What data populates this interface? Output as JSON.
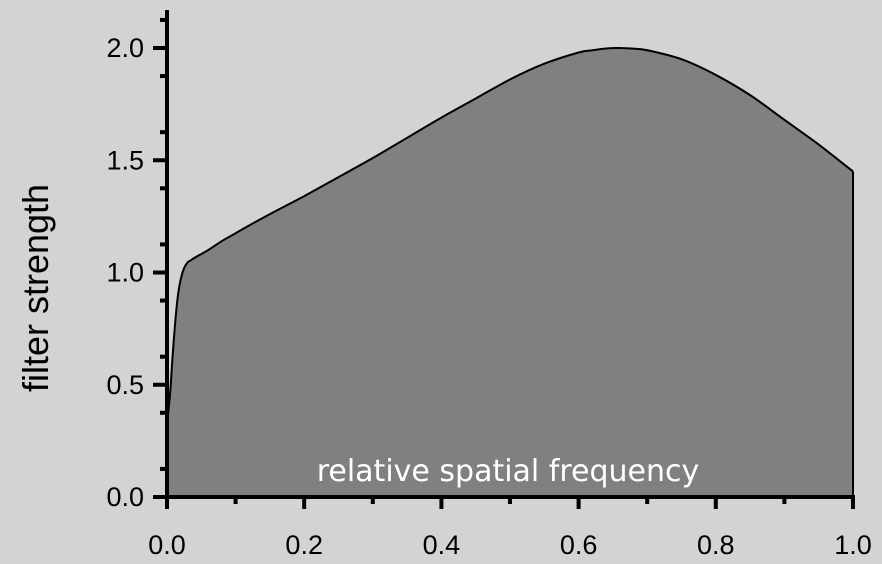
{
  "chart_data": {
    "type": "area",
    "xlabel": "",
    "ylabel": "filter strength",
    "annotation": "relative spatial frequency",
    "xlim": [
      0.0,
      1.0
    ],
    "ylim": [
      0.0,
      2.0
    ],
    "xticks": [
      "0.0",
      "0.2",
      "0.4",
      "0.6",
      "0.8",
      "1.0"
    ],
    "yticks": [
      "0.0",
      "0.5",
      "1.0",
      "1.5",
      "2.0"
    ],
    "grid": false,
    "fill_color": "#808080",
    "line_color": "#000000",
    "background_color": "#d3d3d3",
    "annotation_color": "#ffffff",
    "series": [
      {
        "x": [
          0.0,
          0.002,
          0.005,
          0.008,
          0.012,
          0.016,
          0.02,
          0.025,
          0.03,
          0.035,
          0.04,
          0.06,
          0.08,
          0.1,
          0.12,
          0.15,
          0.2,
          0.25,
          0.3,
          0.35,
          0.4,
          0.45,
          0.5,
          0.55,
          0.6,
          0.62,
          0.64,
          0.66,
          0.68,
          0.7,
          0.75,
          0.8,
          0.85,
          0.9,
          0.95,
          1.0
        ],
        "y": [
          0.33,
          0.38,
          0.48,
          0.62,
          0.78,
          0.9,
          0.97,
          1.02,
          1.045,
          1.055,
          1.065,
          1.1,
          1.14,
          1.175,
          1.21,
          1.26,
          1.34,
          1.425,
          1.51,
          1.6,
          1.69,
          1.775,
          1.86,
          1.93,
          1.98,
          1.99,
          1.998,
          2.0,
          1.997,
          1.99,
          1.95,
          1.88,
          1.79,
          1.68,
          1.57,
          1.45
        ]
      }
    ]
  }
}
